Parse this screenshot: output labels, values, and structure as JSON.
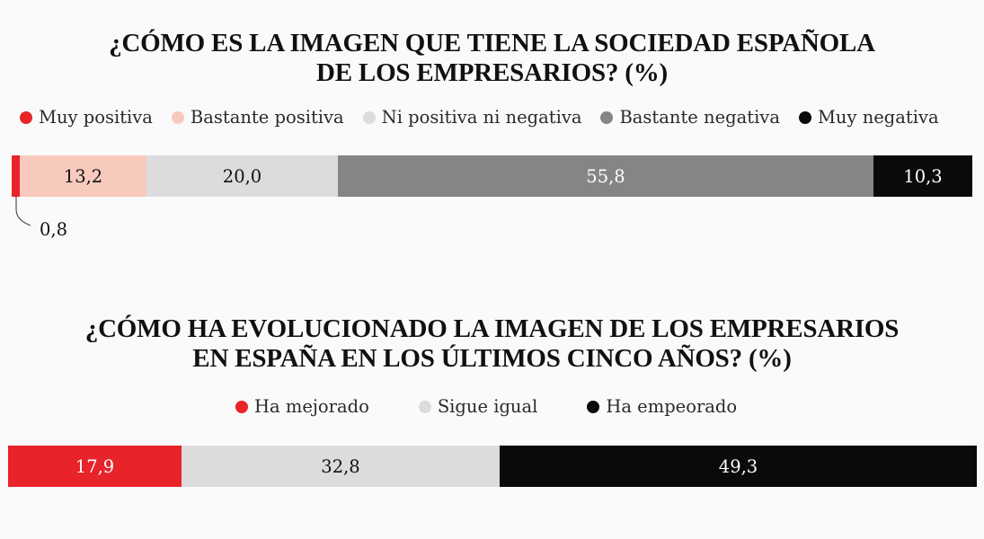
{
  "colors": {
    "muy_positiva": "#e8232a",
    "bastante_positiva": "#f8c9bd",
    "ni_positiva_ni_negativa": "#dcdcde",
    "bastante_negativa": "#858585",
    "muy_negativa": "#0a0a0a",
    "ha_mejorado": "#e8232a",
    "sigue_igual": "#dcdcde",
    "ha_empeorado": "#0a0a0a",
    "label_dark_text": "#111111",
    "label_light_text": "#ffffff"
  },
  "chart_data": [
    {
      "type": "bar",
      "orientation": "horizontal",
      "stacked": true,
      "title": "¿CÓMO ES LA IMAGEN QUE TIENE LA SOCIEDAD ESPAÑOLA DE LOS EMPRESARIOS? (%)",
      "title_lines": [
        "¿CÓMO ES LA IMAGEN QUE TIENE LA SOCIEDAD ESPAÑOLA",
        "DE LOS EMPRESARIOS? (%)"
      ],
      "legend_position": "top",
      "grid": false,
      "xlim": [
        0,
        100.1
      ],
      "series": [
        {
          "name": "Muy positiva",
          "value": 0.8,
          "label": "0,8",
          "color": "#e8232a",
          "text_color": "#111111",
          "label_outside": true
        },
        {
          "name": "Bastante positiva",
          "value": 13.2,
          "label": "13,2",
          "color": "#f8c9bd",
          "text_color": "#111111"
        },
        {
          "name": "Ni positiva ni negativa",
          "value": 20.0,
          "label": "20,0",
          "color": "#dcdcde",
          "text_color": "#111111"
        },
        {
          "name": "Bastante negativa",
          "value": 55.8,
          "label": "55,8",
          "color": "#858585",
          "text_color": "#ffffff"
        },
        {
          "name": "Muy negativa",
          "value": 10.3,
          "label": "10,3",
          "color": "#0a0a0a",
          "text_color": "#ffffff"
        }
      ]
    },
    {
      "type": "bar",
      "orientation": "horizontal",
      "stacked": true,
      "title": "¿CÓMO HA EVOLUCIONADO LA IMAGEN DE LOS EMPRESARIOS EN ESPAÑA EN LOS ÚLTIMOS CINCO AÑOS? (%)",
      "title_lines": [
        "¿CÓMO HA EVOLUCIONADO LA IMAGEN DE LOS EMPRESARIOS",
        "EN ESPAÑA EN LOS ÚLTIMOS CINCO AÑOS? (%)"
      ],
      "legend_position": "top",
      "grid": false,
      "xlim": [
        0,
        100
      ],
      "series": [
        {
          "name": "Ha mejorado",
          "value": 17.9,
          "label": "17,9",
          "color": "#e8232a",
          "text_color": "#ffffff"
        },
        {
          "name": "Sigue igual",
          "value": 32.8,
          "label": "32,8",
          "color": "#dcdcde",
          "text_color": "#111111"
        },
        {
          "name": "Ha empeorado",
          "value": 49.3,
          "label": "49,3",
          "color": "#0a0a0a",
          "text_color": "#ffffff"
        }
      ]
    }
  ]
}
